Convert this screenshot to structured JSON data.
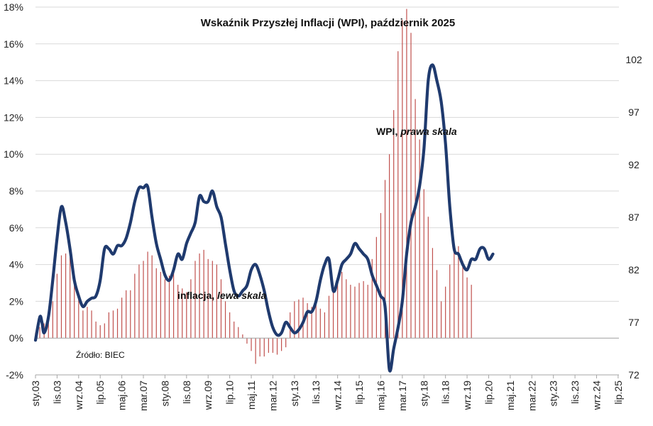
{
  "chart_data": {
    "type": "line",
    "title": "Wskaźnik Przyszłej Inflacji (WPI), październik 2025",
    "source": "Źródło: BIEC",
    "annotations": {
      "wpi_main": "WPI, ",
      "wpi_italic": "prawa skala",
      "inflation_main": "inflacja, ",
      "inflation_italic": "lewa skala"
    },
    "x_labels": [
      "sty.03",
      "lis.03",
      "wrz.04",
      "lip.05",
      "maj.06",
      "mar.07",
      "sty.08",
      "lis.08",
      "wrz.09",
      "lip.10",
      "maj.11",
      "mar.12",
      "sty.13",
      "lis.13",
      "wrz.14",
      "lip.15",
      "maj.16",
      "mar.17",
      "sty.18",
      "lis.18",
      "wrz.19",
      "lip.20",
      "maj.21",
      "mar.22",
      "sty.23",
      "lis.23",
      "wrz.24",
      "lip.25"
    ],
    "left_axis": {
      "min": -2,
      "max": 18,
      "step": 2,
      "ticks": [
        "-2%",
        "0%",
        "2%",
        "4%",
        "6%",
        "8%",
        "10%",
        "12%",
        "14%",
        "16%",
        "18%"
      ]
    },
    "right_axis": {
      "min": 72,
      "max": 107,
      "ticks": [
        72,
        77,
        82,
        87,
        92,
        97,
        102
      ]
    },
    "series": [
      {
        "name": "inflacja",
        "type": "bar",
        "axis": "left",
        "color": "#c0504d",
        "points": [
          [
            0,
            0.3
          ],
          [
            2,
            0.6
          ],
          [
            4,
            0.8
          ],
          [
            6,
            1.0
          ],
          [
            8,
            2.0
          ],
          [
            10,
            3.5
          ],
          [
            12,
            4.5
          ],
          [
            14,
            4.6
          ],
          [
            16,
            4.4
          ],
          [
            18,
            3.3
          ],
          [
            20,
            2.5
          ],
          [
            22,
            1.5
          ],
          [
            24,
            1.7
          ],
          [
            26,
            1.5
          ],
          [
            28,
            0.9
          ],
          [
            30,
            0.7
          ],
          [
            32,
            0.8
          ],
          [
            34,
            1.4
          ],
          [
            36,
            1.5
          ],
          [
            38,
            1.6
          ],
          [
            40,
            2.2
          ],
          [
            42,
            2.6
          ],
          [
            44,
            2.6
          ],
          [
            46,
            3.5
          ],
          [
            48,
            4.0
          ],
          [
            50,
            4.2
          ],
          [
            52,
            4.7
          ],
          [
            54,
            4.5
          ],
          [
            56,
            3.8
          ],
          [
            58,
            3.6
          ],
          [
            60,
            3.2
          ],
          [
            62,
            3.4
          ],
          [
            64,
            3.7
          ],
          [
            66,
            2.9
          ],
          [
            68,
            2.7
          ],
          [
            70,
            2.5
          ],
          [
            72,
            3.2
          ],
          [
            74,
            4.2
          ],
          [
            76,
            4.6
          ],
          [
            78,
            4.8
          ],
          [
            80,
            4.3
          ],
          [
            82,
            4.2
          ],
          [
            84,
            4.0
          ],
          [
            86,
            3.2
          ],
          [
            88,
            2.0
          ],
          [
            90,
            1.4
          ],
          [
            92,
            0.9
          ],
          [
            94,
            0.6
          ],
          [
            96,
            0.2
          ],
          [
            98,
            -0.3
          ],
          [
            100,
            -0.7
          ],
          [
            102,
            -1.4
          ],
          [
            104,
            -1.0
          ],
          [
            106,
            -1.0
          ],
          [
            108,
            -0.8
          ],
          [
            110,
            -0.8
          ],
          [
            112,
            -0.9
          ],
          [
            114,
            -0.7
          ],
          [
            116,
            -0.5
          ],
          [
            118,
            1.4
          ],
          [
            120,
            2.0
          ],
          [
            122,
            2.1
          ],
          [
            124,
            2.2
          ],
          [
            126,
            1.9
          ],
          [
            128,
            1.7
          ],
          [
            130,
            2.0
          ],
          [
            132,
            1.6
          ],
          [
            134,
            1.4
          ],
          [
            136,
            2.3
          ],
          [
            138,
            2.6
          ],
          [
            140,
            3.2
          ],
          [
            142,
            3.6
          ],
          [
            144,
            3.2
          ],
          [
            146,
            2.9
          ],
          [
            148,
            2.8
          ],
          [
            150,
            3.0
          ],
          [
            152,
            3.1
          ],
          [
            154,
            2.9
          ],
          [
            156,
            4.3
          ],
          [
            158,
            5.5
          ],
          [
            160,
            6.8
          ],
          [
            162,
            8.6
          ],
          [
            164,
            10.0
          ],
          [
            166,
            12.4
          ],
          [
            168,
            15.6
          ],
          [
            170,
            17.3
          ],
          [
            172,
            17.9
          ],
          [
            174,
            16.6
          ],
          [
            176,
            13.0
          ],
          [
            178,
            10.8
          ],
          [
            180,
            8.1
          ],
          [
            182,
            6.6
          ],
          [
            184,
            4.9
          ],
          [
            186,
            3.7
          ],
          [
            188,
            2.0
          ],
          [
            190,
            2.8
          ],
          [
            192,
            4.0
          ],
          [
            194,
            4.9
          ],
          [
            196,
            5.0
          ],
          [
            198,
            4.2
          ],
          [
            200,
            3.3
          ],
          [
            202,
            2.9
          ]
        ]
      },
      {
        "name": "WPI",
        "type": "line",
        "axis": "right",
        "color": "#1f3a6e",
        "points": [
          [
            0,
            75.3
          ],
          [
            2,
            77.5
          ],
          [
            3,
            77.0
          ],
          [
            4,
            76.0
          ],
          [
            6,
            77.5
          ],
          [
            8,
            81.0
          ],
          [
            10,
            85.0
          ],
          [
            12,
            88.0
          ],
          [
            14,
            86.5
          ],
          [
            16,
            84.0
          ],
          [
            18,
            81.0
          ],
          [
            20,
            79.5
          ],
          [
            22,
            78.5
          ],
          [
            24,
            79.0
          ],
          [
            26,
            79.3
          ],
          [
            28,
            79.5
          ],
          [
            30,
            81.0
          ],
          [
            32,
            84.0
          ],
          [
            34,
            84.0
          ],
          [
            36,
            83.5
          ],
          [
            38,
            84.3
          ],
          [
            40,
            84.3
          ],
          [
            42,
            85.0
          ],
          [
            44,
            86.5
          ],
          [
            46,
            88.5
          ],
          [
            48,
            89.8
          ],
          [
            50,
            89.8
          ],
          [
            52,
            89.9
          ],
          [
            54,
            87.0
          ],
          [
            56,
            84.5
          ],
          [
            58,
            83.0
          ],
          [
            60,
            81.5
          ],
          [
            62,
            81.0
          ],
          [
            64,
            82.0
          ],
          [
            66,
            83.5
          ],
          [
            68,
            83.0
          ],
          [
            70,
            84.5
          ],
          [
            72,
            85.5
          ],
          [
            74,
            86.5
          ],
          [
            76,
            89.0
          ],
          [
            78,
            88.5
          ],
          [
            80,
            88.5
          ],
          [
            82,
            89.5
          ],
          [
            84,
            88.0
          ],
          [
            86,
            87.0
          ],
          [
            88,
            84.5
          ],
          [
            90,
            82.0
          ],
          [
            92,
            80.0
          ],
          [
            94,
            79.5
          ],
          [
            96,
            80.0
          ],
          [
            98,
            80.5
          ],
          [
            100,
            82.0
          ],
          [
            102,
            82.5
          ],
          [
            104,
            81.5
          ],
          [
            106,
            80.0
          ],
          [
            108,
            78.0
          ],
          [
            110,
            76.5
          ],
          [
            112,
            75.8
          ],
          [
            114,
            76.0
          ],
          [
            116,
            77.0
          ],
          [
            118,
            76.5
          ],
          [
            120,
            76.0
          ],
          [
            122,
            76.3
          ],
          [
            124,
            77.0
          ],
          [
            126,
            78.0
          ],
          [
            128,
            78.0
          ],
          [
            130,
            79.0
          ],
          [
            132,
            81.0
          ],
          [
            134,
            82.5
          ],
          [
            136,
            83.0
          ],
          [
            138,
            80.0
          ],
          [
            140,
            81.0
          ],
          [
            142,
            82.5
          ],
          [
            144,
            83.0
          ],
          [
            146,
            83.5
          ],
          [
            148,
            84.5
          ],
          [
            150,
            84.0
          ],
          [
            152,
            83.5
          ],
          [
            154,
            83.0
          ],
          [
            156,
            81.5
          ],
          [
            158,
            80.5
          ],
          [
            160,
            79.5
          ],
          [
            162,
            78.5
          ],
          [
            164,
            72.5
          ],
          [
            166,
            74.5
          ],
          [
            168,
            76.5
          ],
          [
            170,
            79.0
          ],
          [
            172,
            83.5
          ],
          [
            174,
            86.5
          ],
          [
            176,
            88.0
          ],
          [
            178,
            90.0
          ],
          [
            180,
            93.5
          ],
          [
            182,
            100.0
          ],
          [
            184,
            101.5
          ],
          [
            186,
            100.0
          ],
          [
            188,
            98.0
          ],
          [
            190,
            94.0
          ],
          [
            192,
            88.0
          ],
          [
            194,
            84.0
          ],
          [
            196,
            83.5
          ],
          [
            198,
            82.5
          ],
          [
            200,
            82.0
          ],
          [
            202,
            83.0
          ],
          [
            204,
            83.0
          ],
          [
            206,
            84.0
          ],
          [
            208,
            84.0
          ],
          [
            210,
            83.0
          ],
          [
            212,
            83.5
          ]
        ]
      }
    ]
  }
}
